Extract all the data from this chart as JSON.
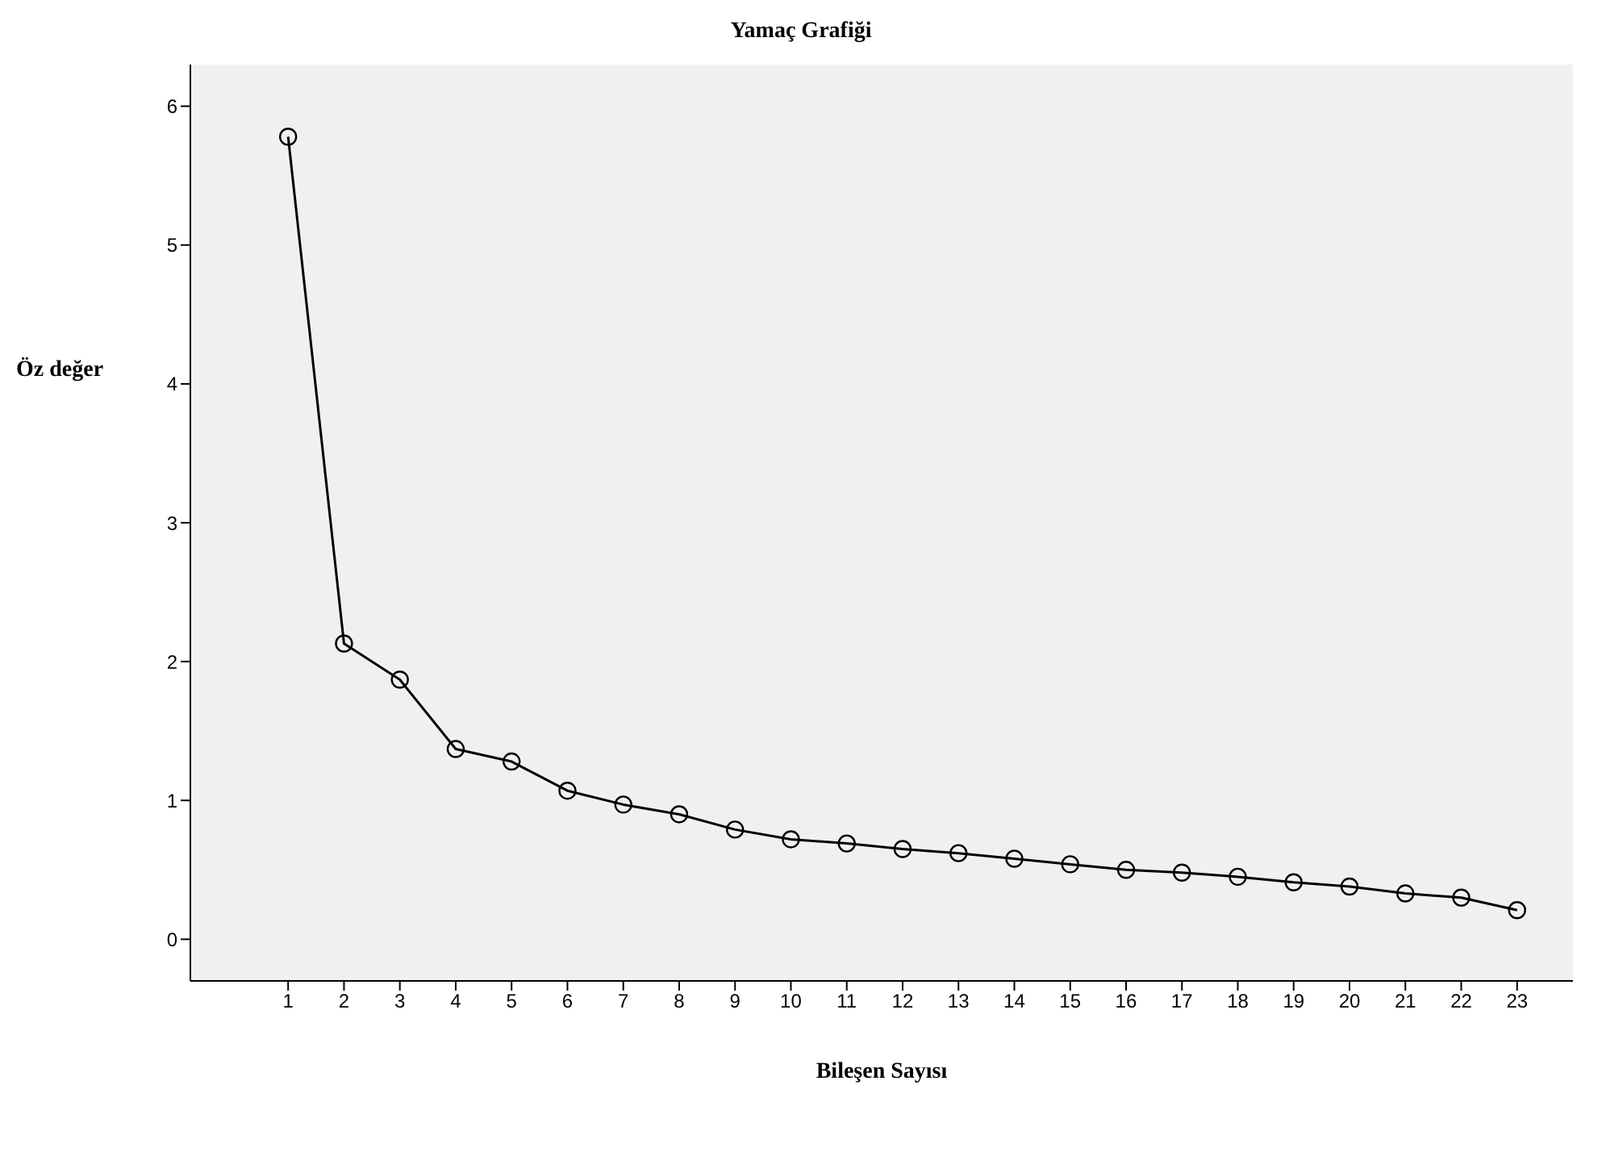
{
  "chart_data": {
    "type": "line",
    "title": "Yamaç Grafiği",
    "xlabel": "Bileşen Sayısı",
    "ylabel": "Öz değer",
    "x": [
      1,
      2,
      3,
      4,
      5,
      6,
      7,
      8,
      9,
      10,
      11,
      12,
      13,
      14,
      15,
      16,
      17,
      18,
      19,
      20,
      21,
      22,
      23
    ],
    "series": [
      {
        "color": "#000000",
        "values": [
          5.78,
          2.13,
          1.87,
          1.37,
          1.28,
          1.07,
          0.97,
          0.9,
          0.79,
          0.72,
          0.69,
          0.65,
          0.62,
          0.58,
          0.54,
          0.5,
          0.48,
          0.45,
          0.41,
          0.38,
          0.33,
          0.3,
          0.21
        ]
      }
    ],
    "xlim": [
      -0.75,
      24
    ],
    "xticks": [
      1,
      2,
      3,
      4,
      5,
      6,
      7,
      8,
      9,
      10,
      11,
      12,
      13,
      14,
      15,
      16,
      17,
      18,
      19,
      20,
      21,
      22,
      23
    ],
    "ylim": [
      -0.3,
      6.3
    ],
    "yticks": [
      0,
      1,
      2,
      3,
      4,
      5,
      6
    ],
    "grid": false,
    "legend": false,
    "marker": "circle",
    "line_style": "solid"
  }
}
